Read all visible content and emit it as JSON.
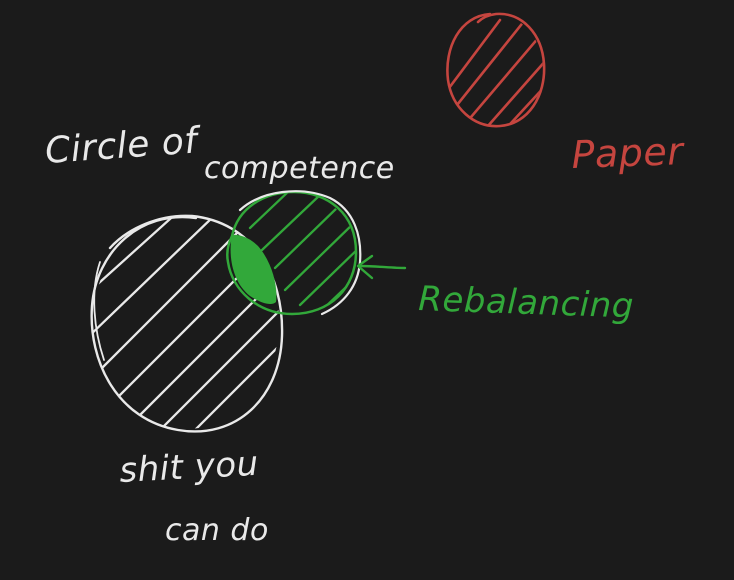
{
  "labels": {
    "circle_of": "Circle of",
    "competence": "competence",
    "shit_you": "shit you",
    "can_do": "can do",
    "rebalancing": "Rebalancing",
    "paper": "Paper"
  },
  "colors": {
    "background": "#1b1b1b",
    "white_ink": "#e9e9e9",
    "green_ink": "#32a83a",
    "red_ink": "#c5453f"
  }
}
